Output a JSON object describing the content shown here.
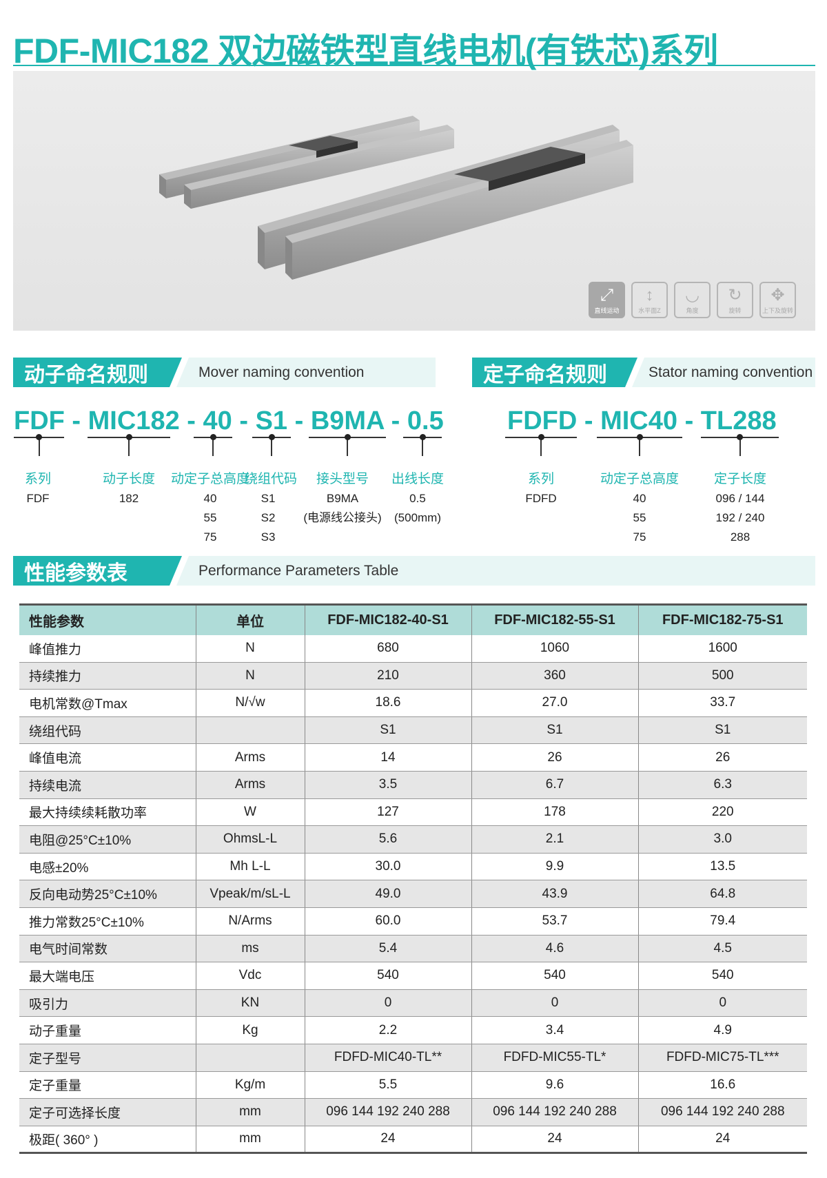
{
  "title": "FDF-MIC182 双边磁铁型直线电机(有铁芯)系列",
  "colors": {
    "accent": "#1fb5b0",
    "table_header": "#afdcd8",
    "row_alt": "#e6e6e6"
  },
  "motion_icons": [
    {
      "icon": "linear-arrow-icon",
      "label": "直线运动",
      "active": true
    },
    {
      "icon": "vertical-arrow-icon",
      "label": "水平面Z",
      "active": false
    },
    {
      "icon": "angle-arc-icon",
      "label": "角度",
      "active": false
    },
    {
      "icon": "rotate-icon",
      "label": "旋转",
      "active": false
    },
    {
      "icon": "up-down-rotate-icon",
      "label": "上下及旋转",
      "active": false
    }
  ],
  "mover": {
    "title_cn": "动子命名规则",
    "title_en": "Mover naming convention",
    "code": [
      "FDF",
      " - ",
      "MIC182",
      " - ",
      "40",
      " -  ",
      "S1",
      " - ",
      "B9MA",
      " - ",
      "0.5"
    ],
    "fields": [
      {
        "label": "系列",
        "values": "FDF"
      },
      {
        "label": "动子长度",
        "values": "182"
      },
      {
        "label": "动定子总高度",
        "values": "40\n55\n75"
      },
      {
        "label": "绕组代码",
        "values": "S1\nS2\nS3"
      },
      {
        "label": "接头型号",
        "values": "B9MA\n(电源线公接头)"
      },
      {
        "label": "出线长度",
        "values": "0.5\n(500mm)"
      }
    ]
  },
  "stator": {
    "title_cn": "定子命名规则",
    "title_en": "Stator naming convention",
    "code": [
      "FDFD",
      " - ",
      "MIC40",
      " - ",
      "TL288"
    ],
    "fields": [
      {
        "label": "系列",
        "values": "FDFD"
      },
      {
        "label": "动定子总高度",
        "values": "40\n55\n75"
      },
      {
        "label": "定子长度",
        "values": "096 / 144\n192 / 240\n288"
      }
    ]
  },
  "perf": {
    "title_cn": "性能参数表",
    "title_en": "Performance Parameters Table",
    "headers": [
      "性能参数",
      "单位",
      "FDF-MIC182-40-S1",
      "FDF-MIC182-55-S1",
      "FDF-MIC182-75-S1"
    ],
    "rows": [
      [
        "峰值推力",
        "N",
        "680",
        "1060",
        "1600"
      ],
      [
        "持续推力",
        "N",
        "210",
        "360",
        "500"
      ],
      [
        "电机常数@Tmax",
        "N/√w",
        "18.6",
        "27.0",
        "33.7"
      ],
      [
        "绕组代码",
        "",
        "S1",
        "S1",
        "S1"
      ],
      [
        "峰值电流",
        "Arms",
        "14",
        "26",
        "26"
      ],
      [
        "持续电流",
        "Arms",
        "3.5",
        "6.7",
        "6.3"
      ],
      [
        "最大持续续耗散功率",
        "W",
        "127",
        "178",
        "220"
      ],
      [
        "电阻@25°C±10%",
        "OhmsL-L",
        "5.6",
        "2.1",
        "3.0"
      ],
      [
        "电感±20%",
        "Mh L-L",
        "30.0",
        "9.9",
        "13.5"
      ],
      [
        "反向电动势25°C±10%",
        "Vpeak/m/sL-L",
        "49.0",
        "43.9",
        "64.8"
      ],
      [
        "推力常数25°C±10%",
        "N/Arms",
        "60.0",
        "53.7",
        "79.4"
      ],
      [
        "电气时间常数",
        "ms",
        "5.4",
        "4.6",
        "4.5"
      ],
      [
        "最大端电压",
        "Vdc",
        "540",
        "540",
        "540"
      ],
      [
        "吸引力",
        "KN",
        "0",
        "0",
        "0"
      ],
      [
        "动子重量",
        "Kg",
        "2.2",
        "3.4",
        "4.9"
      ],
      [
        "定子型号",
        "",
        "FDFD-MIC40-TL**",
        "FDFD-MIC55-TL*",
        "FDFD-MIC75-TL***"
      ],
      [
        "定子重量",
        "Kg/m",
        "5.5",
        "9.6",
        "16.6"
      ],
      [
        "定子可选择长度",
        "mm",
        "096 144 192 240 288",
        "096 144 192 240 288",
        "096 144 192 240 288"
      ],
      [
        "极距( 360° )",
        "mm",
        "24",
        "24",
        "24"
      ]
    ]
  }
}
